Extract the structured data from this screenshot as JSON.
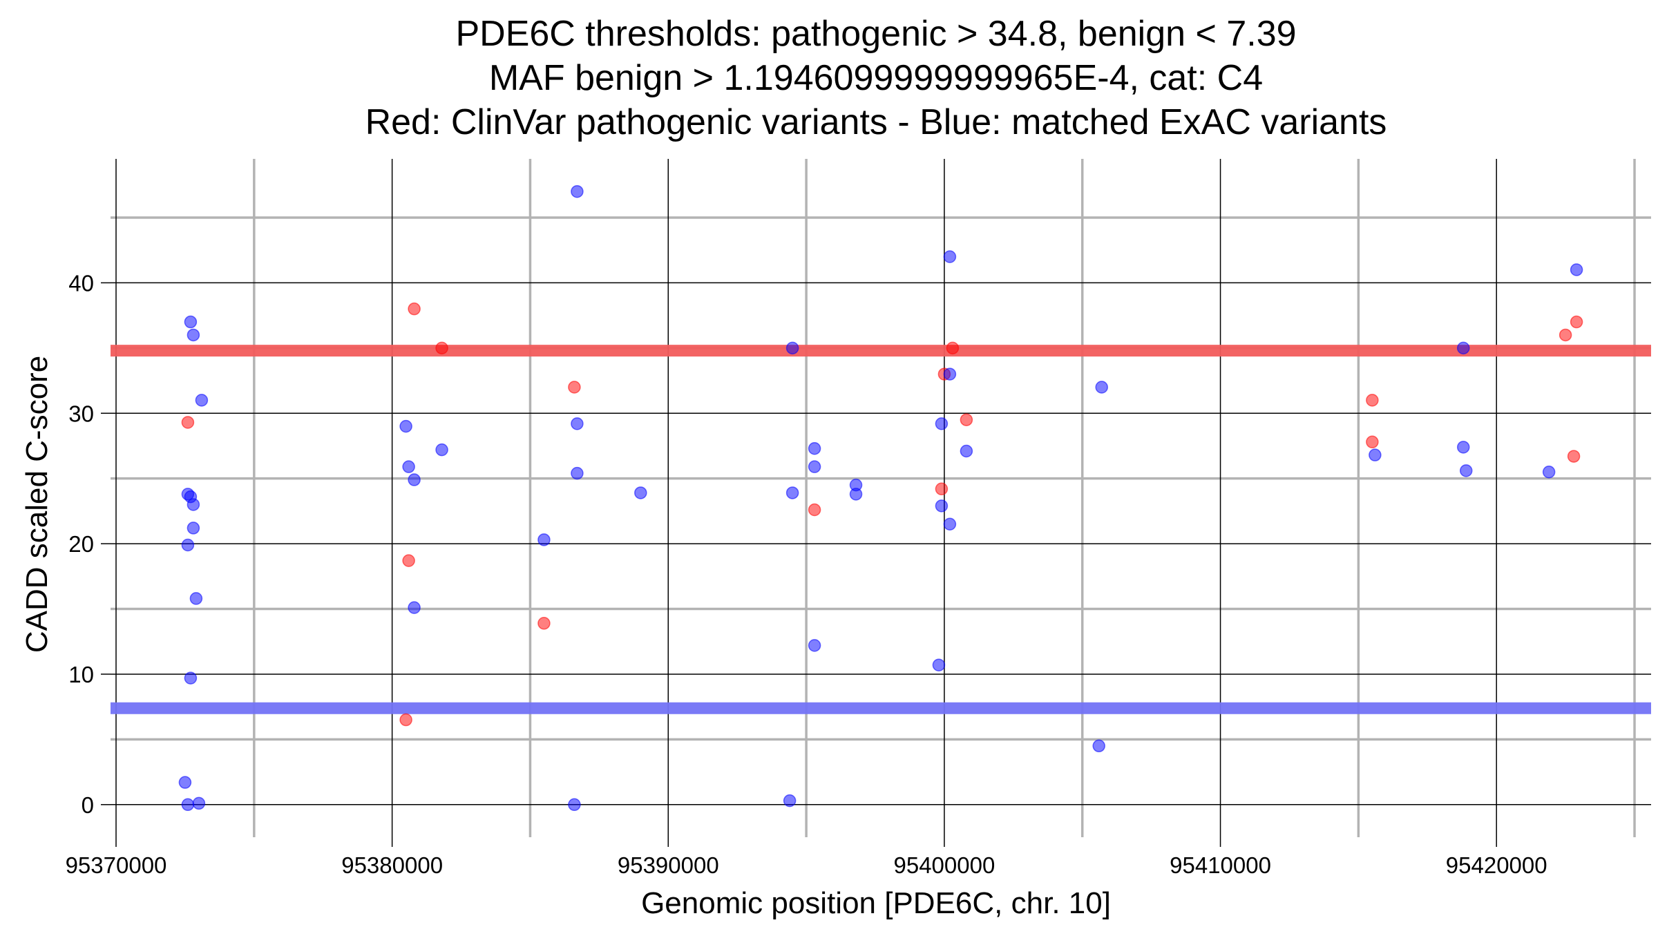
{
  "chart_data": {
    "type": "scatter",
    "title_lines": [
      "PDE6C thresholds: pathogenic > 34.8, benign < 7.39",
      "MAF benign > 1.1946099999999965E-4, cat: C4",
      "Red: ClinVar pathogenic variants - Blue: matched ExAC variants"
    ],
    "xlabel": "Genomic position [PDE6C, chr. 10]",
    "ylabel": "CADD scaled C-score",
    "xlim": [
      95369800,
      95425600
    ],
    "ylim": [
      -2.5,
      49.5
    ],
    "x_ticks": [
      95370000,
      95380000,
      95390000,
      95400000,
      95410000,
      95420000
    ],
    "x_tick_labels": [
      "95370000",
      "95380000",
      "95390000",
      "95400000",
      "95410000",
      "95420000"
    ],
    "y_ticks": [
      0,
      10,
      20,
      30,
      40
    ],
    "y_tick_labels": [
      "0",
      "10",
      "20",
      "30",
      "40"
    ],
    "x_minor_grid": [
      95375000,
      95385000,
      95395000,
      95405000,
      95415000,
      95425000
    ],
    "y_minor_grid": [
      5,
      15,
      25,
      35,
      45
    ],
    "grid": true,
    "thresholds": [
      {
        "name": "pathogenic",
        "value": 34.8,
        "color": "#f25c5c"
      },
      {
        "name": "benign",
        "value": 7.39,
        "color": "#7373f5"
      }
    ],
    "colors": {
      "pathogenic": "#ff0000",
      "benign": "#0000ff",
      "major_grid": "#000000",
      "minor_grid": "#b3b3b3"
    },
    "series": [
      {
        "name": "ClinVar pathogenic variants",
        "color": "#ff0000",
        "points": [
          [
            95372600,
            29.3
          ],
          [
            95380500,
            6.5
          ],
          [
            95380600,
            18.7
          ],
          [
            95380800,
            38.0
          ],
          [
            95381800,
            35.0
          ],
          [
            95385500,
            13.9
          ],
          [
            95386600,
            32.0
          ],
          [
            95395300,
            22.6
          ],
          [
            95399900,
            24.2
          ],
          [
            95400000,
            33.0
          ],
          [
            95400300,
            35.0
          ],
          [
            95400800,
            29.5
          ],
          [
            95415500,
            31.0
          ],
          [
            95415500,
            27.8
          ],
          [
            95422500,
            36.0
          ],
          [
            95422800,
            26.7
          ],
          [
            95422900,
            37.0
          ]
        ]
      },
      {
        "name": "matched ExAC variants",
        "color": "#0000ff",
        "points": [
          [
            95372500,
            1.7
          ],
          [
            95372600,
            0.0
          ],
          [
            95373000,
            0.1
          ],
          [
            95372700,
            9.7
          ],
          [
            95372900,
            15.8
          ],
          [
            95372600,
            19.9
          ],
          [
            95372800,
            21.2
          ],
          [
            95372800,
            23.0
          ],
          [
            95372700,
            23.6
          ],
          [
            95372600,
            23.8
          ],
          [
            95372700,
            37.0
          ],
          [
            95372800,
            36.0
          ],
          [
            95373100,
            31.0
          ],
          [
            95380500,
            29.0
          ],
          [
            95380600,
            25.9
          ],
          [
            95380800,
            24.9
          ],
          [
            95380800,
            15.1
          ],
          [
            95381800,
            27.2
          ],
          [
            95385500,
            20.3
          ],
          [
            95386600,
            0.0
          ],
          [
            95386700,
            47.0
          ],
          [
            95386700,
            29.2
          ],
          [
            95386700,
            25.4
          ],
          [
            95389000,
            23.9
          ],
          [
            95394400,
            0.3
          ],
          [
            95394500,
            23.9
          ],
          [
            95394500,
            35.0
          ],
          [
            95395300,
            27.3
          ],
          [
            95395300,
            25.9
          ],
          [
            95395300,
            12.2
          ],
          [
            95396800,
            24.5
          ],
          [
            95396800,
            23.8
          ],
          [
            95399900,
            29.2
          ],
          [
            95399900,
            22.9
          ],
          [
            95399800,
            10.7
          ],
          [
            95400200,
            42.0
          ],
          [
            95400200,
            33.0
          ],
          [
            95400200,
            21.5
          ],
          [
            95400800,
            27.1
          ],
          [
            95405600,
            4.5
          ],
          [
            95405700,
            32.0
          ],
          [
            95415600,
            26.8
          ],
          [
            95418800,
            35.0
          ],
          [
            95418800,
            27.4
          ],
          [
            95418900,
            25.6
          ],
          [
            95421900,
            25.5
          ],
          [
            95422900,
            41.0
          ]
        ]
      }
    ]
  }
}
